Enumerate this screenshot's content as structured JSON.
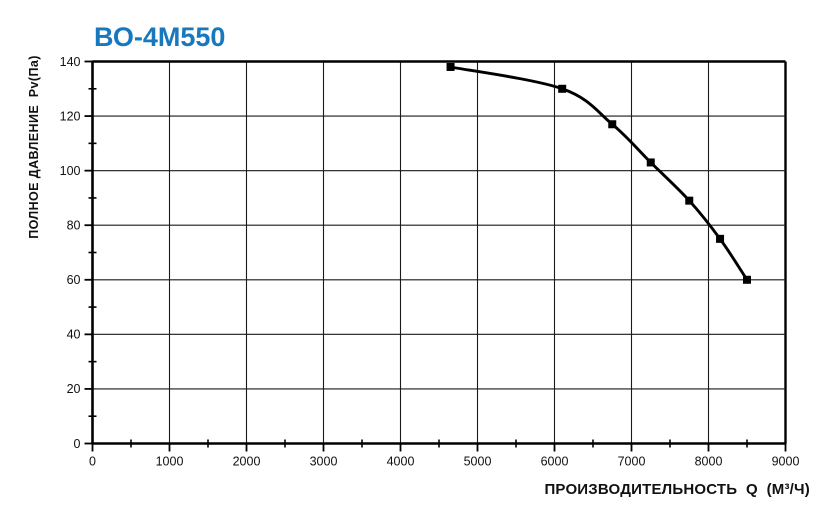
{
  "chart": {
    "title": "ВО-4М550",
    "title_color": "#1778be"
  },
  "chart_data": {
    "type": "line",
    "title": "ВО-4М550",
    "xlabel": "ПРОИЗВОДИТЕЛЬНОСТЬ  Q  (М³/Ч)",
    "ylabel": "ПОЛНОЕ ДАВЛЕНИЕ  Pv(Па)",
    "x": [
      4650,
      6100,
      6750,
      7250,
      7750,
      8150,
      8500
    ],
    "y": [
      138,
      130,
      117,
      103,
      89,
      75,
      60
    ],
    "xlim": [
      0,
      9000
    ],
    "ylim": [
      0,
      140
    ],
    "x_ticks": [
      0,
      1000,
      2000,
      3000,
      4000,
      5000,
      6000,
      7000,
      8000,
      9000
    ],
    "y_ticks": [
      0,
      20,
      40,
      60,
      80,
      100,
      120,
      140
    ],
    "x_minor_step": 500,
    "y_minor_step": 10,
    "grid": true,
    "legend": "none",
    "line_color": "#000000",
    "grid_color": "#1a1a1a",
    "axis_color": "#000000",
    "marker": "filled-square"
  }
}
